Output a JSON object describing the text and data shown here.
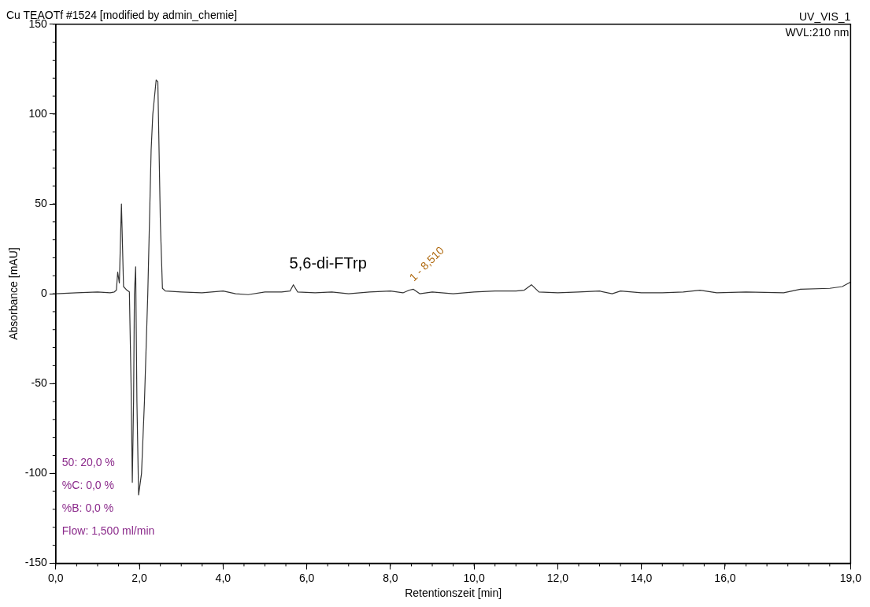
{
  "chart_data": {
    "type": "line",
    "title": "Cu TEAOTf #1524 [modified by admin_chemie]",
    "xlabel": "Retentionszeit [min]",
    "ylabel": "Absorbance [mAU]",
    "x": [
      0,
      0.5,
      1.0,
      1.3,
      1.4,
      1.45,
      1.48,
      1.52,
      1.57,
      1.62,
      1.7,
      1.76,
      1.8,
      1.83,
      1.86,
      1.88,
      1.91,
      1.94,
      1.98,
      2.05,
      2.12,
      2.2,
      2.28,
      2.32,
      2.4,
      2.44,
      2.5,
      2.55,
      2.62,
      3.0,
      3.5,
      4.0,
      4.3,
      4.6,
      5.0,
      5.4,
      5.6,
      5.68,
      5.78,
      6.2,
      6.6,
      7.0,
      7.5,
      8.0,
      8.3,
      8.45,
      8.55,
      8.7,
      9.0,
      9.5,
      10.0,
      10.5,
      11.0,
      11.2,
      11.37,
      11.55,
      12.0,
      12.5,
      13.0,
      13.3,
      13.5,
      14.0,
      14.5,
      15.0,
      15.4,
      15.8,
      16.5,
      17.4,
      17.8,
      18.5,
      18.8,
      19.0
    ],
    "series": [
      {
        "color": "#333333",
        "values": [
          0,
          0.5,
          1,
          0.5,
          1,
          2,
          12,
          6,
          50,
          4,
          2,
          1,
          -50,
          -105,
          -60,
          0,
          15,
          -60,
          -112,
          -100,
          -60,
          0,
          80,
          100,
          119,
          118,
          40,
          3,
          1.5,
          1,
          0.5,
          1.5,
          0,
          -0.5,
          1,
          1,
          1.5,
          5,
          1,
          0.5,
          1,
          0,
          1,
          1.5,
          0.5,
          2,
          2.5,
          0,
          1,
          0,
          1,
          1.5,
          1.5,
          2,
          5,
          1,
          0.5,
          1,
          1.5,
          0,
          1.5,
          0.5,
          0.5,
          1,
          2,
          0.5,
          1,
          0.5,
          2.5,
          3,
          4,
          6.5
        ]
      }
    ],
    "xlim": [
      0,
      19
    ],
    "xticks": [
      {
        "value": 0,
        "label": "0,0"
      },
      {
        "value": 2,
        "label": "2,0"
      },
      {
        "value": 4,
        "label": "4,0"
      },
      {
        "value": 6,
        "label": "6,0"
      },
      {
        "value": 8,
        "label": "8,0"
      },
      {
        "value": 10,
        "label": "10,0"
      },
      {
        "value": 12,
        "label": "12,0"
      },
      {
        "value": 14,
        "label": "14,0"
      },
      {
        "value": 16,
        "label": "16,0"
      },
      {
        "value": 19,
        "label": "19,0"
      }
    ],
    "ylim": [
      -150,
      150
    ],
    "yticks": [
      -150,
      -100,
      -50,
      0,
      50,
      100,
      150
    ],
    "grid": false,
    "legend": false,
    "marker": "none",
    "line_style": "solid",
    "annotations": [
      "UV_VIS_1",
      "WVL:210 nm",
      "50: 20,0 %",
      "%C: 0,0 %",
      "%B: 0,0 %",
      "Flow: 1,500 ml/min",
      {
        "text": "5,6-di-FTrp",
        "x": 5.68,
        "y": 5
      },
      {
        "text": "1 - 8,510",
        "x": 8.51,
        "y": 2.5
      }
    ]
  }
}
